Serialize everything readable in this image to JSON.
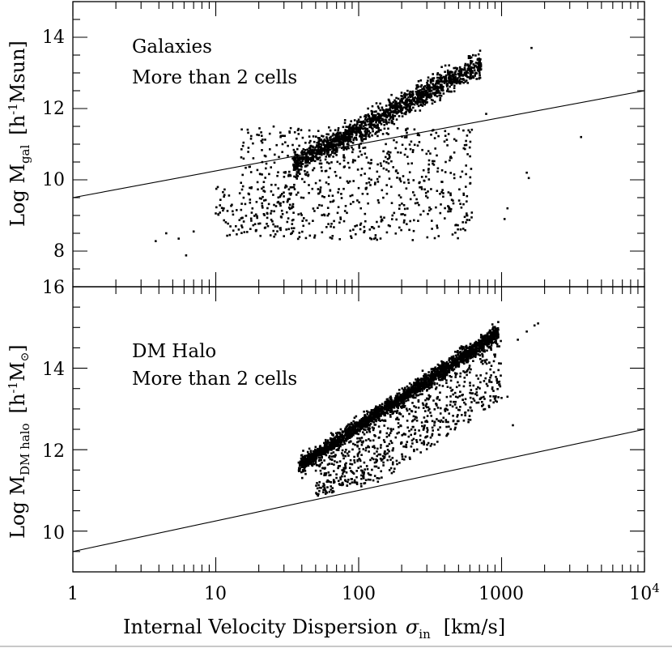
{
  "chart_data": [
    {
      "type": "scatter",
      "panel": "top",
      "annotations": [
        "Galaxies",
        "More than 2 cells"
      ],
      "ylabel_parts": {
        "prefix": "Log M",
        "sub": "gal",
        "unit_open": "[h",
        "unit_sup": "-1",
        "unit_rest": "Msun]"
      },
      "xscale": "log",
      "xlim": [
        1,
        10000
      ],
      "ylim": [
        7,
        15
      ],
      "yticks": [
        8,
        10,
        12,
        14
      ],
      "ytick_labels": [
        "8",
        "10",
        "12",
        "14"
      ],
      "grid": false,
      "threshold_line": {
        "x": [
          1,
          10000
        ],
        "y": [
          9.5,
          12.5
        ]
      },
      "clusters": [
        {
          "name": "main-sequence",
          "count": 1500,
          "x_range": [
            35,
            720
          ],
          "ridge_intercept": 7.12,
          "ridge_slope": 2.15,
          "scatter": 0.17
        },
        {
          "name": "scattered",
          "count": 700,
          "x_range": [
            15,
            620
          ],
          "y_range": [
            8.3,
            11.5
          ]
        },
        {
          "name": "low-sigma",
          "count": 90,
          "x_range": [
            10,
            35
          ],
          "y_range": [
            8.4,
            9.8
          ]
        },
        {
          "name": "isolated",
          "points": [
            [
              3.8,
              8.28
            ],
            [
              4.5,
              8.5
            ],
            [
              5.5,
              8.35
            ],
            [
              6.2,
              7.88
            ],
            [
              7.0,
              8.55
            ],
            [
              780,
              11.85
            ],
            [
              1050,
              8.9
            ],
            [
              1500,
              10.2
            ],
            [
              1550,
              10.05
            ],
            [
              3600,
              11.2
            ],
            [
              1100,
              9.2
            ],
            [
              1620,
              13.7
            ]
          ]
        }
      ]
    },
    {
      "type": "scatter",
      "panel": "bottom",
      "annotations": [
        "DM Halo",
        "More than 2 cells"
      ],
      "ylabel_parts": {
        "prefix": "Log M",
        "sub": "DM halo",
        "unit_open": "[h",
        "unit_sup": "-1",
        "unit_rest": "M",
        "unit_close": "]"
      },
      "xscale": "log",
      "xlim": [
        1,
        10000
      ],
      "ylim": [
        9,
        16
      ],
      "yticks": [
        10,
        12,
        14,
        16
      ],
      "ytick_labels": [
        "10",
        "12",
        "14",
        "16"
      ],
      "grid": false,
      "threshold_line": {
        "x": [
          1,
          10000
        ],
        "y": [
          9.5,
          12.5
        ]
      },
      "clusters": [
        {
          "name": "main-sequence",
          "count": 2200,
          "x_range": [
            38,
            950
          ],
          "ridge_intercept": 7.87,
          "ridge_slope": 2.35,
          "scatter": 0.1
        },
        {
          "name": "lower-spread",
          "count": 700,
          "x_range": [
            50,
            1000
          ],
          "y_range_below_ridge": [
            0.2,
            1.7
          ]
        },
        {
          "name": "isolated",
          "points": [
            [
              1200,
              12.6
            ],
            [
              1100,
              13.3
            ],
            [
              1700,
              15.05
            ],
            [
              1500,
              14.9
            ],
            [
              1300,
              14.7
            ],
            [
              1800,
              15.1
            ]
          ]
        }
      ]
    }
  ],
  "xaxis": {
    "label": "Internal Velocity Dispersion",
    "symbol": "σ",
    "symbol_sub": "in",
    "unit": "[km/s]",
    "tick_values": [
      1,
      10,
      100,
      1000,
      10000
    ],
    "tick_labels": [
      "1",
      "10",
      "100",
      "1000"
    ],
    "last_tick_base": "10",
    "last_tick_exp": "4"
  }
}
